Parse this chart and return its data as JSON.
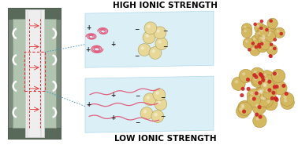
{
  "title_top": "LOW IONIC STRENGTH",
  "title_bottom": "HIGH IONIC STRENGTH",
  "title_fontsize": 7.5,
  "title_fontweight": "bold",
  "bg_color": "#ffffff",
  "panel_bg": "#d6eef5",
  "panel_border": "#aad4e8",
  "red_dashed": "#e03030",
  "blue_dashed": "#4090c0",
  "polymer_color": "#e06080",
  "particle_fill": "#e8d898",
  "particle_stroke": "#b8a868",
  "floc_fill": "#d4b860",
  "floc_stroke": "#b09040",
  "floc_red_dots": "#cc2020",
  "plus_color": "#222222",
  "minus_color": "#222222",
  "reactor_body": "#7a8a7a",
  "reactor_body_dark": "#5a6a5a",
  "reactor_cavity": "#b0c4b0",
  "reactor_cylinder": "#eeeeee",
  "reactor_cylinder_edge": "#cccccc"
}
